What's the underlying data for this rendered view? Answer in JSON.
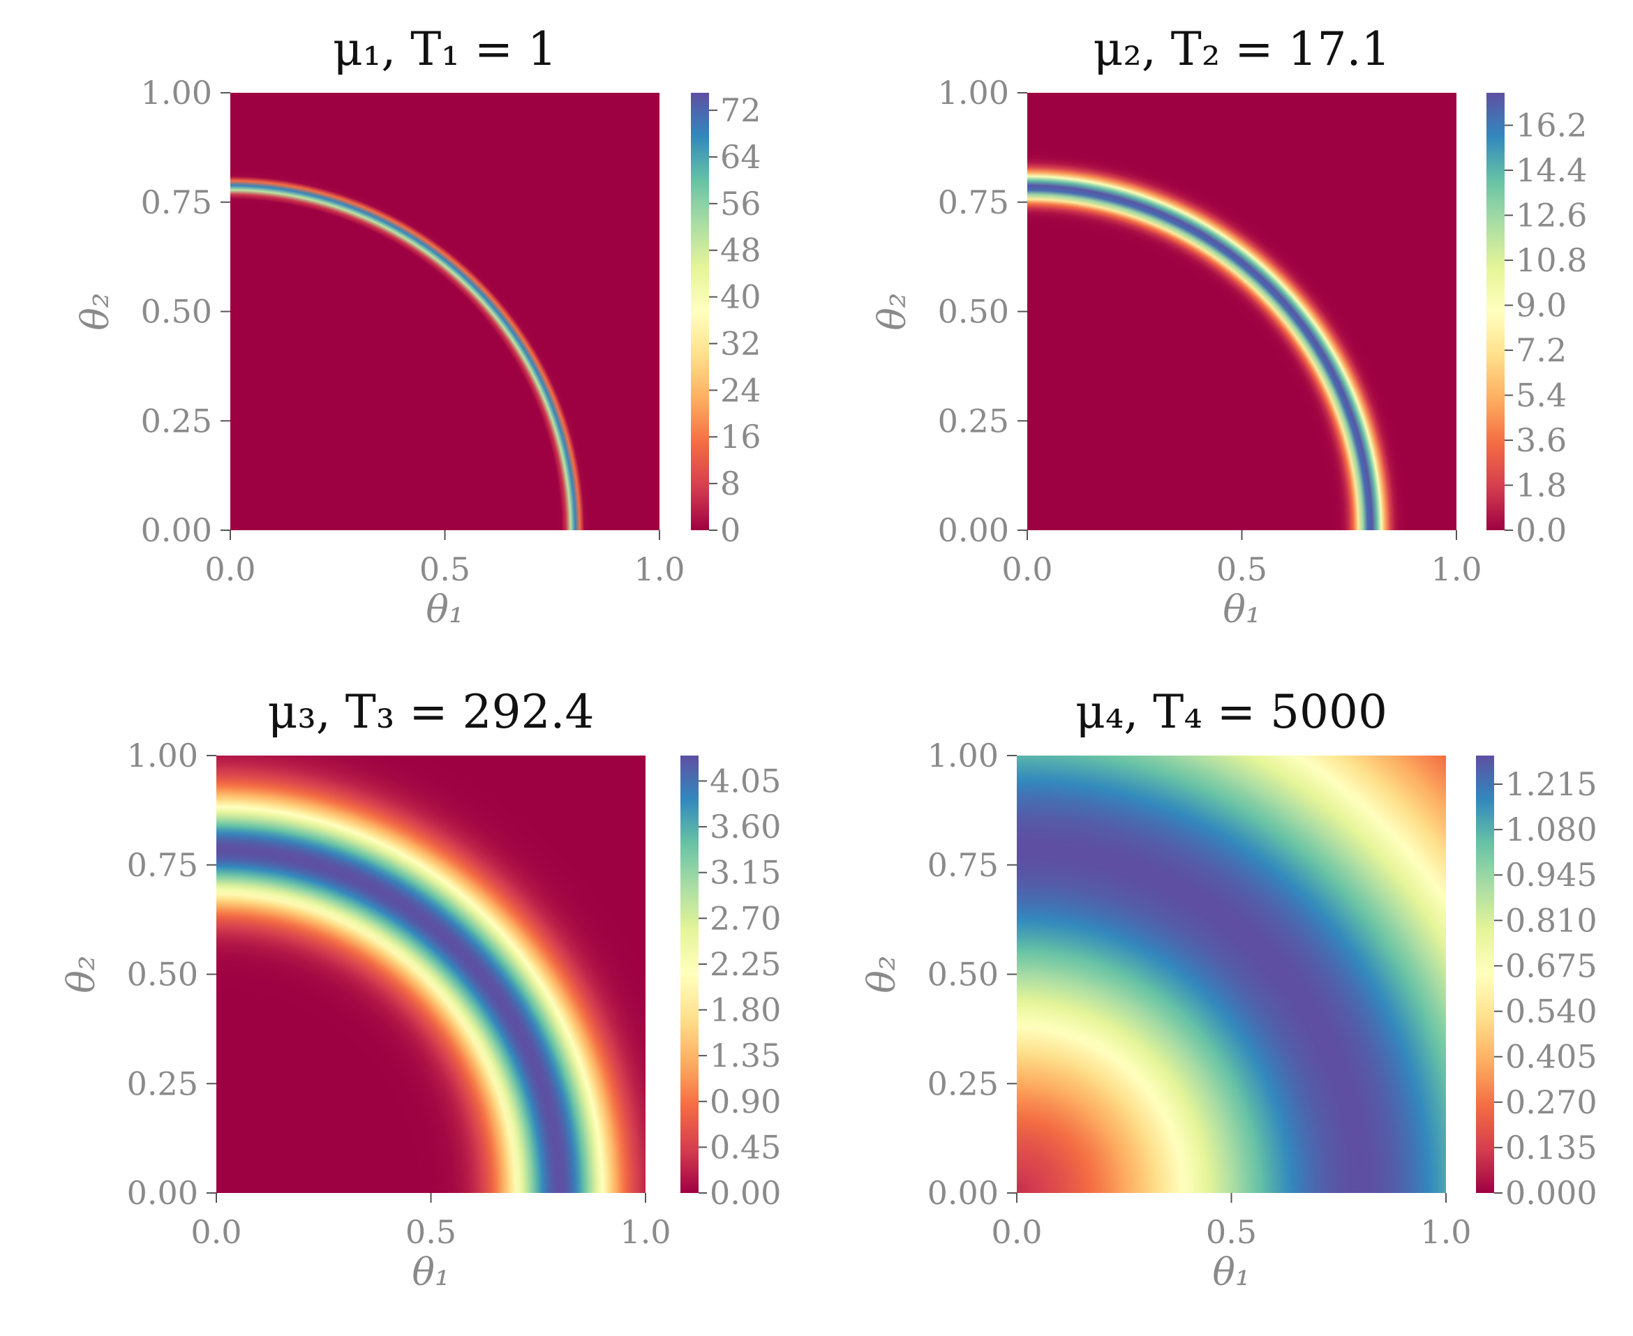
{
  "chart_data": [
    {
      "type": "heatmap",
      "title": "μ₁, T₁ = 1",
      "xlabel": "θ₁",
      "ylabel": "θ₂",
      "xlim": [
        0,
        1
      ],
      "ylim": [
        0,
        1
      ],
      "x_ticks": [
        "0.0",
        "0.5",
        "1.0"
      ],
      "y_ticks": [
        "0.00",
        "0.25",
        "0.50",
        "0.75",
        "1.00"
      ],
      "colormap": "Spectral",
      "ring_center": [
        0,
        0
      ],
      "ring_radius": 0.8,
      "ring_width": 0.008,
      "colorbar": {
        "min": 0,
        "max": 75,
        "ticks": [
          "0",
          "8",
          "16",
          "24",
          "32",
          "40",
          "48",
          "56",
          "64",
          "72"
        ]
      }
    },
    {
      "type": "heatmap",
      "title": "μ₂, T₂ = 17.1",
      "xlabel": "θ₁",
      "ylabel": "θ₂",
      "xlim": [
        0,
        1
      ],
      "ylim": [
        0,
        1
      ],
      "x_ticks": [
        "0.0",
        "0.5",
        "1.0"
      ],
      "y_ticks": [
        "0.00",
        "0.25",
        "0.50",
        "0.75",
        "1.00"
      ],
      "colormap": "Spectral",
      "ring_center": [
        0,
        0
      ],
      "ring_radius": 0.8,
      "ring_width": 0.022,
      "colorbar": {
        "min": 0,
        "max": 17.5,
        "ticks": [
          "0.0",
          "1.8",
          "3.6",
          "5.4",
          "7.2",
          "9.0",
          "10.8",
          "12.6",
          "14.4",
          "16.2"
        ]
      }
    },
    {
      "type": "heatmap",
      "title": "μ₃, T₃ = 292.4",
      "xlabel": "θ₁",
      "ylabel": "θ₂",
      "xlim": [
        0,
        1
      ],
      "ylim": [
        0,
        1
      ],
      "x_ticks": [
        "0.0",
        "0.5",
        "1.0"
      ],
      "y_ticks": [
        "0.00",
        "0.25",
        "0.50",
        "0.75",
        "1.00"
      ],
      "colormap": "Spectral",
      "ring_center": [
        0,
        0
      ],
      "ring_radius": 0.8,
      "ring_width": 0.085,
      "colorbar": {
        "min": 0,
        "max": 4.3,
        "ticks": [
          "0.00",
          "0.45",
          "0.90",
          "1.35",
          "1.80",
          "2.25",
          "2.70",
          "3.15",
          "3.60",
          "4.05"
        ]
      }
    },
    {
      "type": "heatmap",
      "title": "μ₄, T₄ = 5000",
      "xlabel": "θ₁",
      "ylabel": "θ₂",
      "xlim": [
        0,
        1
      ],
      "ylim": [
        0,
        1
      ],
      "x_ticks": [
        "0.0",
        "0.5",
        "1.0"
      ],
      "y_ticks": [
        "0.00",
        "0.25",
        "0.50",
        "0.75",
        "1.00"
      ],
      "colormap": "Spectral",
      "ring_center": [
        0,
        0
      ],
      "ring_radius": 0.8,
      "ring_width": 0.35,
      "colorbar": {
        "min": 0,
        "max": 1.3,
        "ticks": [
          "0.000",
          "0.135",
          "0.270",
          "0.405",
          "0.540",
          "0.675",
          "0.810",
          "0.945",
          "1.080",
          "1.215"
        ]
      }
    }
  ],
  "colors": {
    "spectral_low": "#9e0142",
    "spectral_high": "#5e4fa2"
  }
}
